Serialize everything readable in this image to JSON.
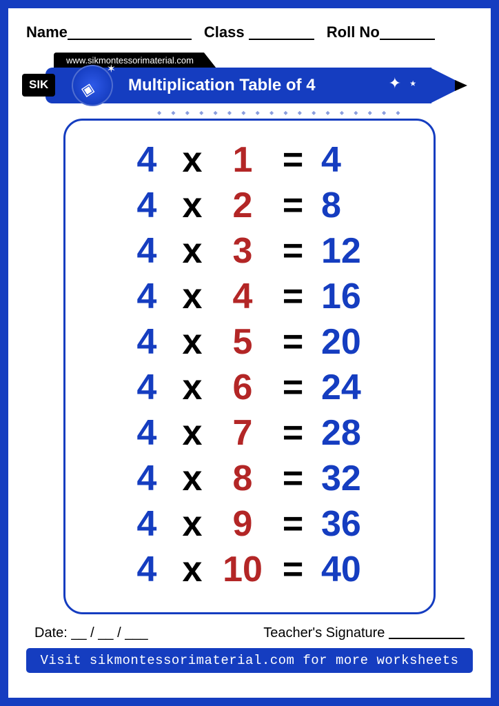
{
  "header": {
    "name_label": "Name",
    "class_label": "Class",
    "roll_label": "Roll No"
  },
  "banner": {
    "url": "www.sikmontessorimaterial.com",
    "tag": "SIK",
    "title": "Multiplication Table of 4"
  },
  "table": {
    "base": 4,
    "op_symbol": "x",
    "eq_symbol": "=",
    "rows": [
      {
        "a": "4",
        "b": "1",
        "r": "4"
      },
      {
        "a": "4",
        "b": "2",
        "r": "8"
      },
      {
        "a": "4",
        "b": "3",
        "r": "12"
      },
      {
        "a": "4",
        "b": "4",
        "r": "16"
      },
      {
        "a": "4",
        "b": "5",
        "r": "20"
      },
      {
        "a": "4",
        "b": "6",
        "r": "24"
      },
      {
        "a": "4",
        "b": "7",
        "r": "28"
      },
      {
        "a": "4",
        "b": "8",
        "r": "32"
      },
      {
        "a": "4",
        "b": "9",
        "r": "36"
      },
      {
        "a": "4",
        "b": "10",
        "r": "40"
      }
    ],
    "colors": {
      "multiplicand": "#153dc0",
      "operator": "#000000",
      "multiplier": "#b32626",
      "result": "#153dc0",
      "border": "#153dc0"
    },
    "font_size_pt": 40
  },
  "footer": {
    "date_label": "Date: __ / __ / ___",
    "signature_label": "Teacher's Signature",
    "cta": "Visit sikmontessorimaterial.com for more worksheets"
  },
  "page_border_color": "#153dc0"
}
